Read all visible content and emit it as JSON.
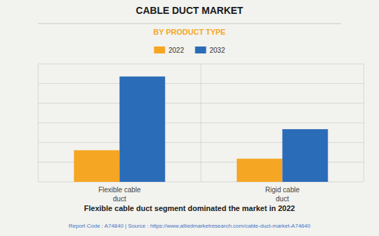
{
  "chart_data": {
    "type": "bar",
    "title": "CABLE DUCT MARKET",
    "subtitle": "BY PRODUCT TYPE",
    "categories": [
      "Flexible cable\nduct",
      "Rigid cable\nduct"
    ],
    "series": [
      {
        "name": "2022",
        "color": "#F5A623",
        "values": [
          0.3,
          0.22
        ]
      },
      {
        "name": "2032",
        "color": "#2B6CB8",
        "values": [
          1.0,
          0.5
        ]
      }
    ],
    "ylim": [
      0,
      1.12
    ],
    "yticks": [
      0,
      0.18666666666666668,
      0.37333333333333335,
      0.56,
      0.7466666666666667,
      0.9333333333333333,
      1.12
    ],
    "grid": true,
    "tick_labels": "x",
    "legend": "top",
    "annotations": [
      "Flexible cable duct segment dominated the market in 2022",
      "Report Code : A74840  |  Source : https://www.alliedmarketresearch.com/cable-duct-market-A74840"
    ]
  }
}
